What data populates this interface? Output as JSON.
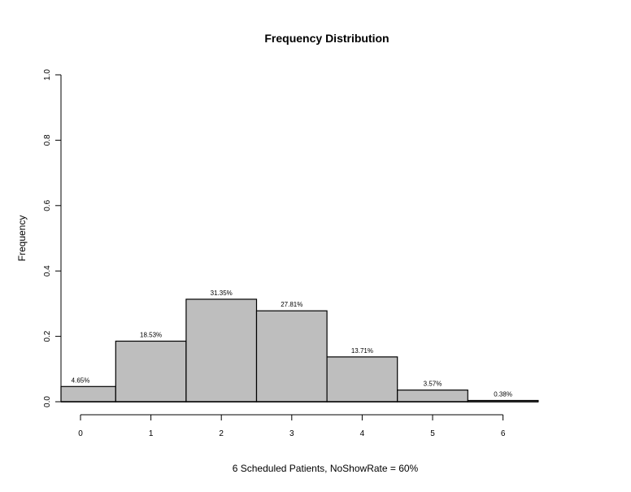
{
  "chart_data": {
    "type": "bar",
    "title": "Frequency Distribution",
    "xlabel": "6 Scheduled Patients,  NoShowRate = 60%",
    "ylabel": "Frequency",
    "categories": [
      "0",
      "1",
      "2",
      "3",
      "4",
      "5",
      "6"
    ],
    "values": [
      0.0465,
      0.1853,
      0.3135,
      0.2781,
      0.1371,
      0.0357,
      0.0038
    ],
    "data_labels": [
      "4.65%",
      "18.53%",
      "31.35%",
      "27.81%",
      "13.71%",
      "3.57%",
      "0.38%"
    ],
    "ylim": [
      0,
      1
    ],
    "yticks": [
      "0.0",
      "0.2",
      "0.4",
      "0.6",
      "0.8",
      "1.0"
    ],
    "grid": false,
    "bar_color": "#bebebe"
  }
}
